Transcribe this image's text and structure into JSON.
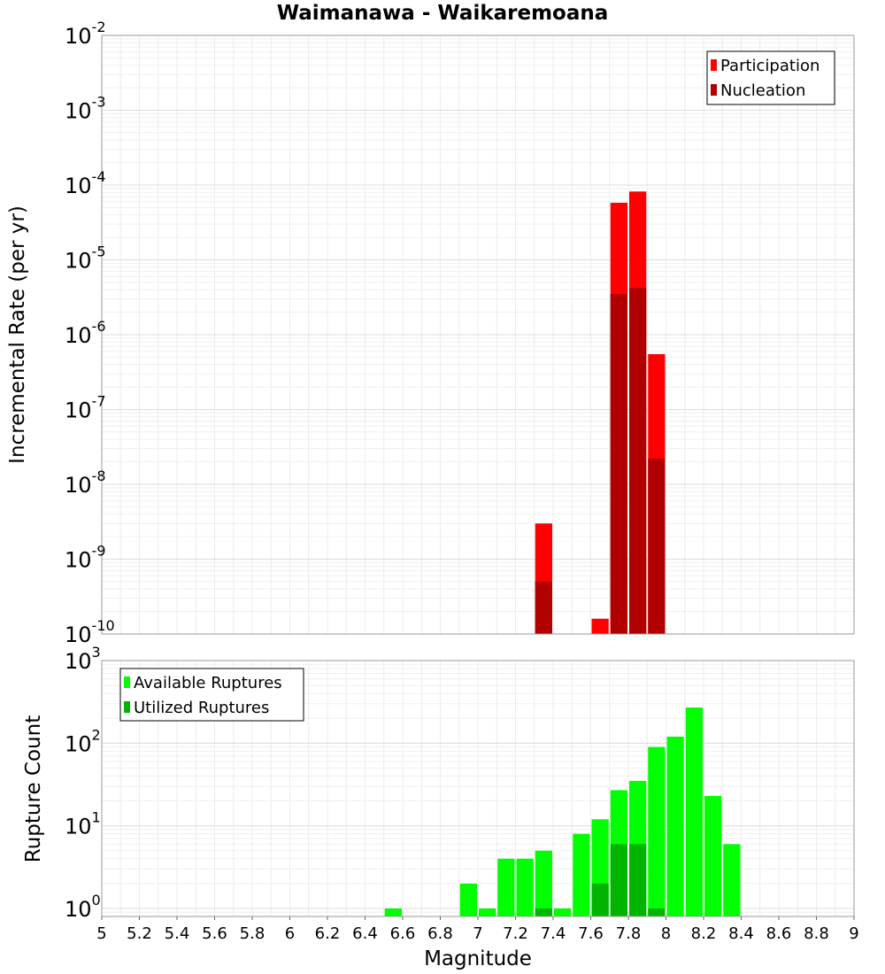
{
  "chart_data": [
    {
      "type": "bar",
      "title": "Waimanawa - Waikaremoana",
      "xlabel": "",
      "ylabel": "Incremental Rate (per yr)",
      "yscale": "log",
      "ylim": [
        1e-10,
        0.01
      ],
      "y_ticks": [
        {
          "base": "10",
          "exp": "-2"
        },
        {
          "base": "10",
          "exp": "-3"
        },
        {
          "base": "10",
          "exp": "-4"
        },
        {
          "base": "10",
          "exp": "-5"
        },
        {
          "base": "10",
          "exp": "-6"
        },
        {
          "base": "10",
          "exp": "-7"
        },
        {
          "base": "10",
          "exp": "-8"
        },
        {
          "base": "10",
          "exp": "-9"
        },
        {
          "base": "10",
          "exp": "-10"
        }
      ],
      "xlim": [
        5,
        9
      ],
      "bin_width": 0.1,
      "grid": true,
      "legend_position": "top-right",
      "series": [
        {
          "name": "Participation",
          "color": "#ff0000",
          "points": [
            {
              "x": 7.35,
              "y": 3e-09
            },
            {
              "x": 7.65,
              "y": 1.6e-10
            },
            {
              "x": 7.75,
              "y": 5.8e-05
            },
            {
              "x": 7.85,
              "y": 8.2e-05
            },
            {
              "x": 7.95,
              "y": 5.5e-07
            }
          ]
        },
        {
          "name": "Nucleation",
          "color": "#b00000",
          "points": [
            {
              "x": 7.35,
              "y": 5e-10
            },
            {
              "x": 7.75,
              "y": 3.5e-06
            },
            {
              "x": 7.85,
              "y": 4.2e-06
            },
            {
              "x": 7.95,
              "y": 2.2e-08
            }
          ]
        }
      ]
    },
    {
      "type": "bar",
      "title": "",
      "xlabel": "Magnitude",
      "ylabel": "Rupture Count",
      "yscale": "log",
      "ylim": [
        0.8,
        1000
      ],
      "y_ticks": [
        {
          "base": "10",
          "exp": "3",
          "value": 1000
        },
        {
          "base": "10",
          "exp": "2",
          "value": 100
        },
        {
          "base": "10",
          "exp": "1",
          "value": 10
        },
        {
          "base": "10",
          "exp": "0",
          "value": 1
        }
      ],
      "xlim": [
        5,
        9
      ],
      "x_ticks": [
        "5",
        "5.2",
        "5.4",
        "5.6",
        "5.8",
        "6",
        "6.2",
        "6.4",
        "6.6",
        "6.8",
        "7",
        "7.2",
        "7.4",
        "7.6",
        "7.8",
        "8",
        "8.2",
        "8.4",
        "8.6",
        "8.8",
        "9"
      ],
      "bin_width": 0.1,
      "grid": true,
      "legend_position": "top-left",
      "series": [
        {
          "name": "Available Ruptures",
          "color": "#00ff00",
          "points": [
            {
              "x": 6.55,
              "y": 1
            },
            {
              "x": 6.95,
              "y": 2
            },
            {
              "x": 7.05,
              "y": 1
            },
            {
              "x": 7.15,
              "y": 4
            },
            {
              "x": 7.25,
              "y": 4
            },
            {
              "x": 7.35,
              "y": 5
            },
            {
              "x": 7.45,
              "y": 1
            },
            {
              "x": 7.55,
              "y": 8
            },
            {
              "x": 7.65,
              "y": 12
            },
            {
              "x": 7.75,
              "y": 27
            },
            {
              "x": 7.85,
              "y": 35
            },
            {
              "x": 7.95,
              "y": 90
            },
            {
              "x": 8.05,
              "y": 120
            },
            {
              "x": 8.15,
              "y": 270
            },
            {
              "x": 8.25,
              "y": 23
            },
            {
              "x": 8.35,
              "y": 6
            }
          ]
        },
        {
          "name": "Utilized Ruptures",
          "color": "#00b400",
          "points": [
            {
              "x": 7.35,
              "y": 1
            },
            {
              "x": 7.65,
              "y": 2
            },
            {
              "x": 7.75,
              "y": 6
            },
            {
              "x": 7.85,
              "y": 6
            },
            {
              "x": 7.95,
              "y": 1
            }
          ]
        }
      ]
    }
  ]
}
